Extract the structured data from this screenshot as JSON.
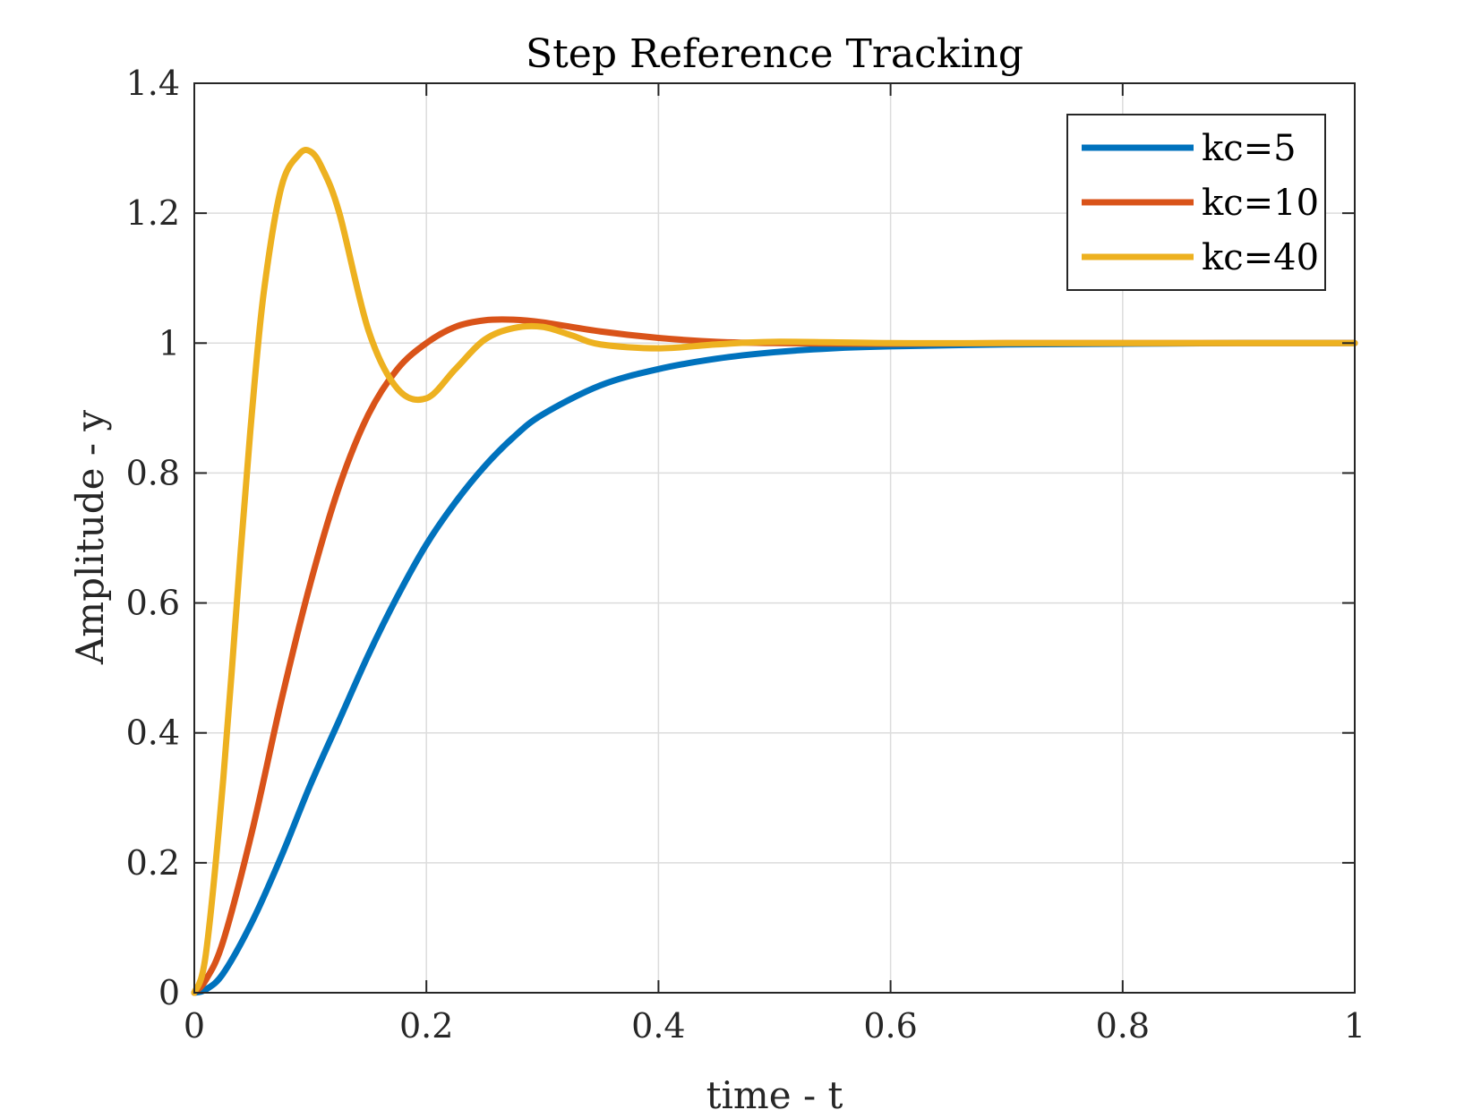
{
  "chart_data": {
    "type": "line",
    "title": "Step Reference Tracking",
    "xlabel": "time - t",
    "ylabel": "Amplitude - y",
    "xlim": [
      0,
      1
    ],
    "ylim": [
      0,
      1.4
    ],
    "xticks": [
      0,
      0.2,
      0.4,
      0.6,
      0.8,
      1
    ],
    "xtick_labels": [
      "0",
      "0.2",
      "0.4",
      "0.6",
      "0.8",
      "1"
    ],
    "yticks": [
      0,
      0.2,
      0.4,
      0.6,
      0.8,
      1,
      1.2,
      1.4
    ],
    "ytick_labels": [
      "0",
      "0.2",
      "0.4",
      "0.6",
      "0.8",
      "1",
      "1.2",
      "1.4"
    ],
    "grid": true,
    "legend_position": "top-right",
    "series": [
      {
        "name": "kc=5",
        "color": "#0072BD",
        "x": [
          0,
          0.01,
          0.025,
          0.05,
          0.075,
          0.1,
          0.125,
          0.15,
          0.175,
          0.2,
          0.225,
          0.25,
          0.275,
          0.3,
          0.35,
          0.4,
          0.45,
          0.5,
          0.55,
          0.6,
          0.7,
          0.8,
          0.9,
          1.0
        ],
        "y": [
          0,
          0.005,
          0.03,
          0.11,
          0.21,
          0.32,
          0.42,
          0.52,
          0.61,
          0.69,
          0.755,
          0.81,
          0.855,
          0.89,
          0.935,
          0.96,
          0.976,
          0.986,
          0.992,
          0.995,
          0.998,
          0.999,
          1.0,
          1.0
        ]
      },
      {
        "name": "kc=10",
        "color": "#D95319",
        "x": [
          0,
          0.01,
          0.025,
          0.05,
          0.075,
          0.1,
          0.125,
          0.15,
          0.175,
          0.2,
          0.225,
          0.25,
          0.275,
          0.3,
          0.35,
          0.4,
          0.45,
          0.5,
          0.6,
          0.7,
          0.8,
          0.9,
          1.0
        ],
        "y": [
          0,
          0.02,
          0.08,
          0.25,
          0.45,
          0.63,
          0.78,
          0.89,
          0.96,
          1.0,
          1.025,
          1.035,
          1.036,
          1.032,
          1.018,
          1.008,
          1.002,
          1.0,
          0.999,
          1.0,
          1.0,
          1.0,
          1.0
        ]
      },
      {
        "name": "kc=40",
        "color": "#EDB120",
        "x": [
          0,
          0.01,
          0.025,
          0.04,
          0.05,
          0.06,
          0.075,
          0.09,
          0.1,
          0.11,
          0.125,
          0.15,
          0.175,
          0.2,
          0.225,
          0.25,
          0.275,
          0.3,
          0.325,
          0.35,
          0.4,
          0.45,
          0.5,
          0.6,
          0.7,
          0.8,
          0.9,
          1.0
        ],
        "y": [
          0,
          0.06,
          0.33,
          0.68,
          0.9,
          1.08,
          1.24,
          1.29,
          1.295,
          1.27,
          1.2,
          1.02,
          0.93,
          0.915,
          0.96,
          1.005,
          1.023,
          1.025,
          1.012,
          0.998,
          0.992,
          0.998,
          1.002,
          1.0,
          1.0,
          1.0,
          1.0,
          1.0
        ]
      }
    ]
  }
}
